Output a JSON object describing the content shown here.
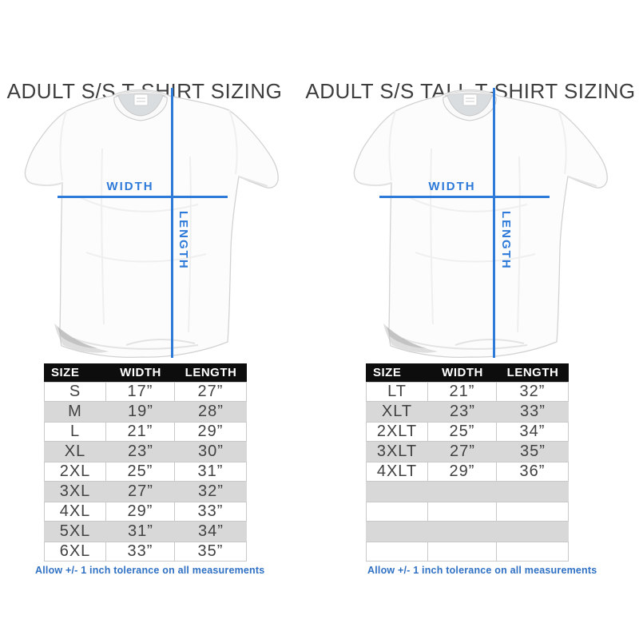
{
  "colors": {
    "measure_blue": "#2e7ad8",
    "note_blue": "#3071c4",
    "stripe_gray": "#d8d8d8",
    "table_header_bg": "#0d0d0d"
  },
  "panels": [
    {
      "title": "ADULT S/S T-SHIRT SIZING",
      "diagram": {
        "width_label": "WIDTH",
        "length_label": "LENGTH"
      },
      "table": {
        "headers": [
          "SIZE",
          "WIDTH",
          "LENGTH"
        ],
        "rows": [
          [
            "S",
            "17”",
            "27”"
          ],
          [
            "M",
            "19”",
            "28”"
          ],
          [
            "L",
            "21”",
            "29”"
          ],
          [
            "XL",
            "23”",
            "30”"
          ],
          [
            "2XL",
            "25”",
            "31”"
          ],
          [
            "3XL",
            "27”",
            "32”"
          ],
          [
            "4XL",
            "29”",
            "33”"
          ],
          [
            "5XL",
            "31”",
            "34”"
          ],
          [
            "6XL",
            "33”",
            "35”"
          ]
        ],
        "empty_rows": 0
      },
      "footnote": "Allow +/- 1 inch tolerance on all measurements"
    },
    {
      "title": "ADULT S/S TALL T-SHIRT SIZING",
      "diagram": {
        "width_label": "WIDTH",
        "length_label": "LENGTH"
      },
      "table": {
        "headers": [
          "SIZE",
          "WIDTH",
          "LENGTH"
        ],
        "rows": [
          [
            "LT",
            "21”",
            "32”"
          ],
          [
            "XLT",
            "23”",
            "33”"
          ],
          [
            "2XLT",
            "25”",
            "34”"
          ],
          [
            "3XLT",
            "27”",
            "35”"
          ],
          [
            "4XLT",
            "29”",
            "36”"
          ]
        ],
        "empty_rows": 4
      },
      "footnote": "Allow +/- 1 inch tolerance on all measurements"
    }
  ]
}
